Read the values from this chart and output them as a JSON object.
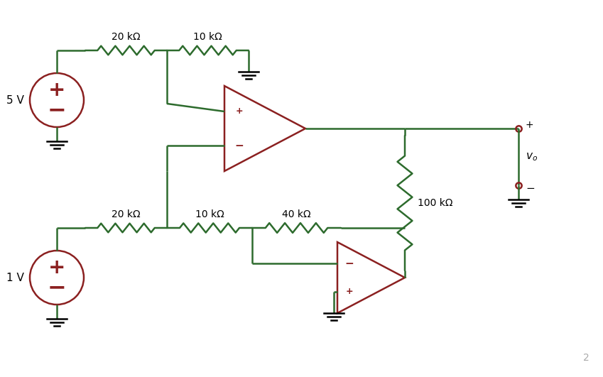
{
  "bg_color": "#ffffff",
  "wire_color": "#2d6b2d",
  "component_color": "#8b2020",
  "text_color": "#000000",
  "page_num_color": "#aaaaaa",
  "fig_width": 8.49,
  "fig_height": 5.31,
  "dpi": 100,
  "labels": {
    "r1_top": "20 kΩ",
    "r2_top": "10 kΩ",
    "r3_bot": "20 kΩ",
    "r4_bot": "10 kΩ",
    "r5_bot": "40 kΩ",
    "r6_mid": "100 kΩ",
    "v1": "5 V",
    "v2": "1 V",
    "vo": "$v_o$",
    "page": "2"
  }
}
